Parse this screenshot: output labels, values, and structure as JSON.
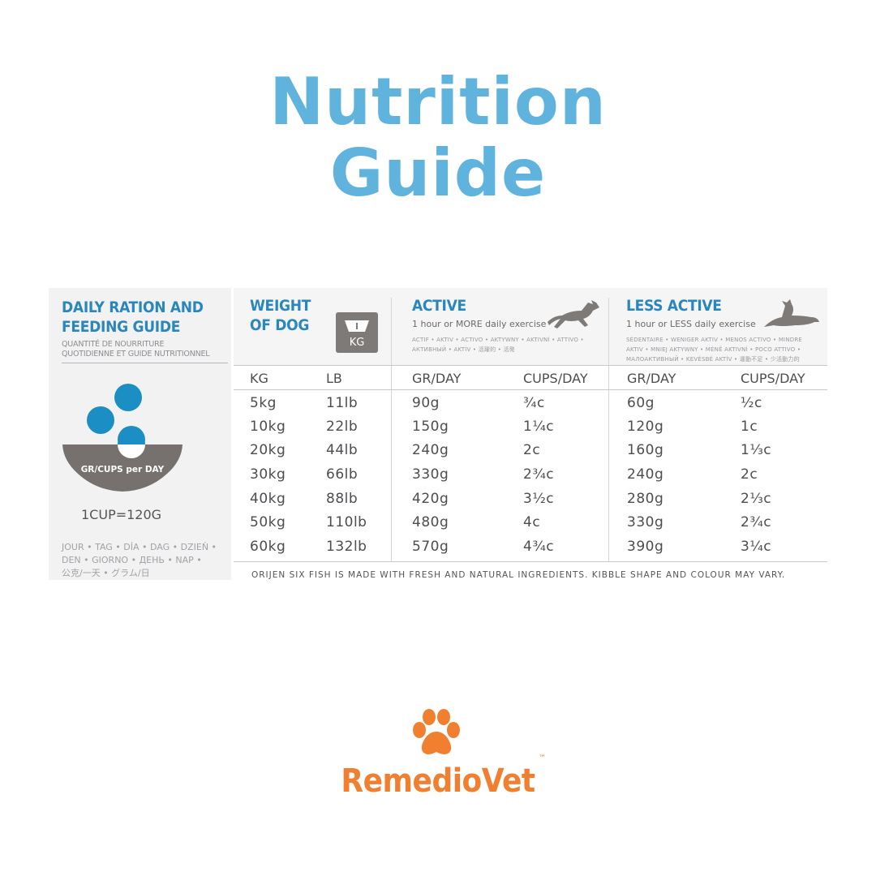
{
  "header": {
    "title_line1": "Nutrition",
    "title_line2": "Guide"
  },
  "guide": {
    "title_line1": "DAILY RATION AND",
    "title_line2": "FEEDING GUIDE",
    "sub_line1": "QUANTITÉ DE NOURRITURE",
    "sub_line2": "QUOTIDIENNE ET GUIDE NUTRITIONNEL",
    "bowl_label": "GR/CUPS per DAY",
    "cup_equivalence": "1CUP=120G",
    "days_line1": "JOUR • TAG • DÍA • DAG • DZIEŃ •",
    "days_line2": "DEN • GIORNO • ДЕНЬ •   NAP •",
    "days_line3": "公克/一天 • グラム/日",
    "weight_title_line1": "WEIGHT",
    "weight_title_line2": "OF DOG",
    "kg_icon_label": "KG",
    "active_title": "ACTIVE",
    "active_sub": "1 hour or MORE daily exercise",
    "active_langs_line1": "ACTIF • AKTIV • ACTIVO • AKTYWNY • AKTIVNÍ • ATTIVO •",
    "active_langs_line2": "АКТИВНЫЙ • AKTÍV • 活躍的 • 活発",
    "less_title": "LESS ACTIVE",
    "less_sub": "1 hour or LESS daily exercise",
    "less_langs_line1": "SÉDENTAIRE • WENIGER AKTIV • MENOS ACTIVO • MINDRE",
    "less_langs_line2": "AKTIV • MNIEJ AKTYWNY • MÉNĚ AKTIVNÍ • POCO ATTIVO •",
    "less_langs_line3": "МАЛОАКТИВНЫЙ • KEVÉSBÉ AKTÍV • 運動不足 • 少活動力的",
    "columns": [
      "KG",
      "LB",
      "GR/DAY",
      "CUPS/DAY",
      "GR/DAY",
      "CUPS/DAY"
    ],
    "rows": [
      [
        "5kg",
        "11lb",
        "90g",
        "¾c",
        "60g",
        "½c"
      ],
      [
        "10kg",
        "22lb",
        "150g",
        "1¼c",
        "120g",
        "1c"
      ],
      [
        "20kg",
        "44lb",
        "240g",
        "2c",
        "160g",
        "1⅓c"
      ],
      [
        "30kg",
        "66lb",
        "330g",
        "2¾c",
        "240g",
        "2c"
      ],
      [
        "40kg",
        "88lb",
        "420g",
        "3½c",
        "280g",
        "2⅓c"
      ],
      [
        "50kg",
        "110lb",
        "480g",
        "4c",
        "330g",
        "2¾c"
      ],
      [
        "60kg",
        "132lb",
        "570g",
        "4¾c",
        "390g",
        "3¼c"
      ]
    ],
    "footnote": "ORIJEN SIX FISH IS MADE WITH FRESH AND NATURAL INGREDIENTS. KIBBLE SHAPE AND COLOUR MAY VARY."
  },
  "brand": {
    "name": "RemedioVet",
    "trademark": "™"
  },
  "colors": {
    "title_blue": "#5fb3dc",
    "heading_blue": "#2a87bd",
    "kibble_blue": "#1b8fc4",
    "bowl_gray": "#76716f",
    "brand_orange": "#f08030"
  }
}
